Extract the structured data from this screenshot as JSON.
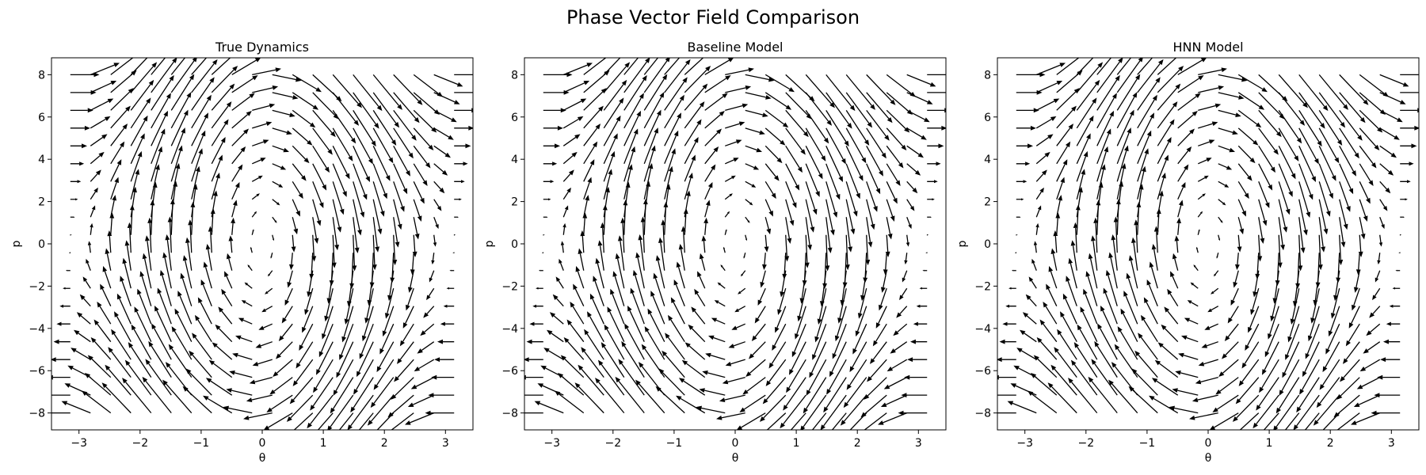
{
  "figure_title": "Phase Vector Field Comparison",
  "chart_data": [
    {
      "type": "quiver",
      "title": "True Dynamics",
      "xlabel": "θ",
      "ylabel": "p",
      "xlim": [
        -3.45,
        3.45
      ],
      "ylim": [
        -8.8,
        8.8
      ],
      "xticks": [
        -3,
        -2,
        -1,
        0,
        1,
        2,
        3
      ],
      "xtick_labels": [
        "−3",
        "−2",
        "−1",
        "0",
        "1",
        "2",
        "3"
      ],
      "yticks": [
        -8,
        -6,
        -4,
        -2,
        0,
        2,
        4,
        6,
        8
      ],
      "ytick_labels": [
        "−8",
        "−6",
        "−4",
        "−2",
        "0",
        "2",
        "4",
        "6",
        "8"
      ],
      "grid": false,
      "field": {
        "dtheta_dt": "p",
        "dp_dt": "-10*sin(theta)",
        "theta_range": [
          -3.14159,
          3.14159
        ],
        "p_range": [
          -8,
          8
        ],
        "grid_size": 20
      }
    },
    {
      "type": "quiver",
      "title": "Baseline Model",
      "xlabel": "θ",
      "ylabel": "p",
      "xlim": [
        -3.45,
        3.45
      ],
      "ylim": [
        -8.8,
        8.8
      ],
      "xticks": [
        -3,
        -2,
        -1,
        0,
        1,
        2,
        3
      ],
      "xtick_labels": [
        "−3",
        "−2",
        "−1",
        "0",
        "1",
        "2",
        "3"
      ],
      "yticks": [
        -8,
        -6,
        -4,
        -2,
        0,
        2,
        4,
        6,
        8
      ],
      "ytick_labels": [
        "−8",
        "−6",
        "−4",
        "−2",
        "0",
        "2",
        "4",
        "6",
        "8"
      ],
      "grid": false,
      "field": {
        "dtheta_dt": "p",
        "dp_dt": "-10*sin(theta)",
        "theta_range": [
          -3.14159,
          3.14159
        ],
        "p_range": [
          -8,
          8
        ],
        "grid_size": 20
      }
    },
    {
      "type": "quiver",
      "title": "HNN Model",
      "xlabel": "θ",
      "ylabel": "p",
      "xlim": [
        -3.45,
        3.45
      ],
      "ylim": [
        -8.8,
        8.8
      ],
      "xticks": [
        -3,
        -2,
        -1,
        0,
        1,
        2,
        3
      ],
      "xtick_labels": [
        "−3",
        "−2",
        "−1",
        "0",
        "1",
        "2",
        "3"
      ],
      "yticks": [
        -8,
        -6,
        -4,
        -2,
        0,
        2,
        4,
        6,
        8
      ],
      "ytick_labels": [
        "−8",
        "−6",
        "−4",
        "−2",
        "0",
        "2",
        "4",
        "6",
        "8"
      ],
      "grid": false,
      "field": {
        "dtheta_dt": "p",
        "dp_dt": "-10*sin(theta)",
        "theta_range": [
          -3.14159,
          3.14159
        ],
        "p_range": [
          -8,
          8
        ],
        "grid_size": 20
      }
    }
  ]
}
